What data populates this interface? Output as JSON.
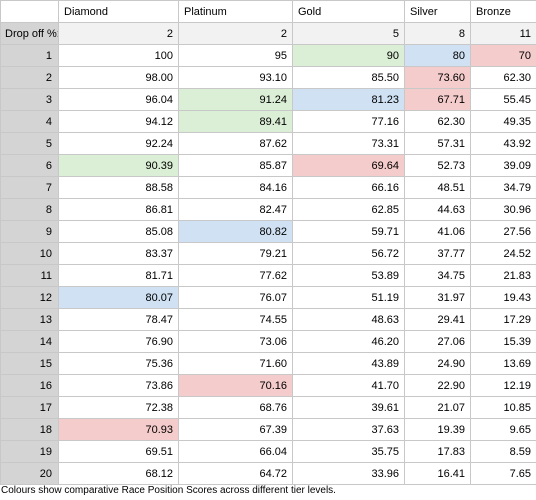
{
  "headers": [
    "",
    "Diamond",
    "Platinum",
    "Gold",
    "Silver",
    "Bronze"
  ],
  "drop_off": {
    "label": "Drop off %:",
    "values": [
      "2",
      "2",
      "5",
      "8",
      "11"
    ]
  },
  "highlight_colors": {
    "green": "#dbeed6",
    "blue": "#cfe1f3",
    "red": "#f5cccc"
  },
  "rows": [
    {
      "pos": "1",
      "cells": [
        {
          "v": "100"
        },
        {
          "v": "95"
        },
        {
          "v": "90",
          "c": "green"
        },
        {
          "v": "80",
          "c": "blue"
        },
        {
          "v": "70",
          "c": "red"
        }
      ]
    },
    {
      "pos": "2",
      "cells": [
        {
          "v": "98.00"
        },
        {
          "v": "93.10"
        },
        {
          "v": "85.50"
        },
        {
          "v": "73.60",
          "c": "red"
        },
        {
          "v": "62.30"
        }
      ]
    },
    {
      "pos": "3",
      "cells": [
        {
          "v": "96.04"
        },
        {
          "v": "91.24",
          "c": "green"
        },
        {
          "v": "81.23",
          "c": "blue"
        },
        {
          "v": "67.71",
          "c": "red"
        },
        {
          "v": "55.45"
        }
      ]
    },
    {
      "pos": "4",
      "cells": [
        {
          "v": "94.12"
        },
        {
          "v": "89.41",
          "c": "green"
        },
        {
          "v": "77.16"
        },
        {
          "v": "62.30"
        },
        {
          "v": "49.35"
        }
      ]
    },
    {
      "pos": "5",
      "cells": [
        {
          "v": "92.24"
        },
        {
          "v": "87.62"
        },
        {
          "v": "73.31"
        },
        {
          "v": "57.31"
        },
        {
          "v": "43.92"
        }
      ]
    },
    {
      "pos": "6",
      "cells": [
        {
          "v": "90.39",
          "c": "green"
        },
        {
          "v": "85.87"
        },
        {
          "v": "69.64",
          "c": "red"
        },
        {
          "v": "52.73"
        },
        {
          "v": "39.09"
        }
      ]
    },
    {
      "pos": "7",
      "cells": [
        {
          "v": "88.58"
        },
        {
          "v": "84.16"
        },
        {
          "v": "66.16"
        },
        {
          "v": "48.51"
        },
        {
          "v": "34.79"
        }
      ]
    },
    {
      "pos": "8",
      "cells": [
        {
          "v": "86.81"
        },
        {
          "v": "82.47"
        },
        {
          "v": "62.85"
        },
        {
          "v": "44.63"
        },
        {
          "v": "30.96"
        }
      ]
    },
    {
      "pos": "9",
      "cells": [
        {
          "v": "85.08"
        },
        {
          "v": "80.82",
          "c": "blue"
        },
        {
          "v": "59.71"
        },
        {
          "v": "41.06"
        },
        {
          "v": "27.56"
        }
      ]
    },
    {
      "pos": "10",
      "cells": [
        {
          "v": "83.37"
        },
        {
          "v": "79.21"
        },
        {
          "v": "56.72"
        },
        {
          "v": "37.77"
        },
        {
          "v": "24.52"
        }
      ]
    },
    {
      "pos": "11",
      "cells": [
        {
          "v": "81.71"
        },
        {
          "v": "77.62"
        },
        {
          "v": "53.89"
        },
        {
          "v": "34.75"
        },
        {
          "v": "21.83"
        }
      ]
    },
    {
      "pos": "12",
      "cells": [
        {
          "v": "80.07",
          "c": "blue"
        },
        {
          "v": "76.07"
        },
        {
          "v": "51.19"
        },
        {
          "v": "31.97"
        },
        {
          "v": "19.43"
        }
      ]
    },
    {
      "pos": "13",
      "cells": [
        {
          "v": "78.47"
        },
        {
          "v": "74.55"
        },
        {
          "v": "48.63"
        },
        {
          "v": "29.41"
        },
        {
          "v": "17.29"
        }
      ]
    },
    {
      "pos": "14",
      "cells": [
        {
          "v": "76.90"
        },
        {
          "v": "73.06"
        },
        {
          "v": "46.20"
        },
        {
          "v": "27.06"
        },
        {
          "v": "15.39"
        }
      ]
    },
    {
      "pos": "15",
      "cells": [
        {
          "v": "75.36"
        },
        {
          "v": "71.60"
        },
        {
          "v": "43.89"
        },
        {
          "v": "24.90"
        },
        {
          "v": "13.69"
        }
      ]
    },
    {
      "pos": "16",
      "cells": [
        {
          "v": "73.86"
        },
        {
          "v": "70.16",
          "c": "red"
        },
        {
          "v": "41.70"
        },
        {
          "v": "22.90"
        },
        {
          "v": "12.19"
        }
      ]
    },
    {
      "pos": "17",
      "cells": [
        {
          "v": "72.38"
        },
        {
          "v": "68.76"
        },
        {
          "v": "39.61"
        },
        {
          "v": "21.07"
        },
        {
          "v": "10.85"
        }
      ]
    },
    {
      "pos": "18",
      "cells": [
        {
          "v": "70.93",
          "c": "red"
        },
        {
          "v": "67.39"
        },
        {
          "v": "37.63"
        },
        {
          "v": "19.39"
        },
        {
          "v": "9.65"
        }
      ]
    },
    {
      "pos": "19",
      "cells": [
        {
          "v": "69.51"
        },
        {
          "v": "66.04"
        },
        {
          "v": "35.75"
        },
        {
          "v": "17.83"
        },
        {
          "v": "8.59"
        }
      ]
    },
    {
      "pos": "20",
      "cells": [
        {
          "v": "68.12"
        },
        {
          "v": "64.72"
        },
        {
          "v": "33.96"
        },
        {
          "v": "16.41"
        },
        {
          "v": "7.65"
        }
      ]
    }
  ],
  "caption": "Colours show comparative Race Position Scores across different tier levels."
}
